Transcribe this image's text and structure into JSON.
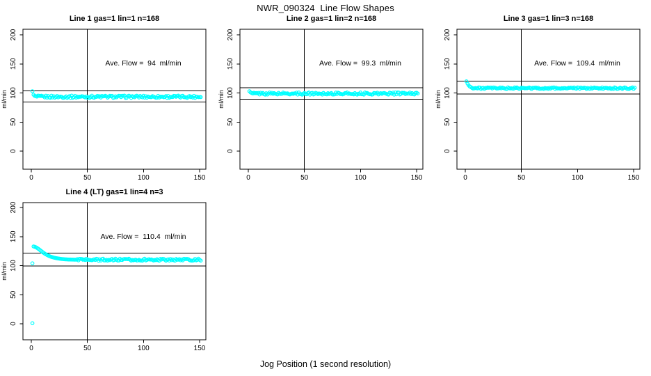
{
  "page": {
    "main_title": "NWR_090324  Line Flow Shapes",
    "shared_x_label": "Jog Position (1 second resolution)",
    "background_color": "#ffffff",
    "point_color": "#00ffff",
    "axis_color": "#000000"
  },
  "chart_data": [
    {
      "type": "scatter",
      "title": "Line 1 gas=1 lin=1 n=168",
      "annotation": "Ave. Flow =  94  ml/min",
      "ave_flow_ml_min": 94,
      "ylabel": "ml/min",
      "x_ticks": [
        "0",
        "50",
        "100",
        "150"
      ],
      "y_ticks": [
        "0",
        "50",
        "100",
        "150",
        "200"
      ],
      "xlim": [
        0,
        155
      ],
      "ylim": [
        0,
        200
      ],
      "ref_vline_x": 50,
      "ref_hlines_y": [
        103.4,
        84.6
      ],
      "transient_points": [
        [
          1,
          103
        ],
        [
          2,
          97
        ],
        [
          3,
          95
        ]
      ],
      "steady_band": {
        "x_start": 4,
        "x_end": 151,
        "value": 93.5,
        "noise": 2.0
      }
    },
    {
      "type": "scatter",
      "title": "Line 2 gas=1 lin=2 n=168",
      "annotation": "Ave. Flow =  99.3  ml/min",
      "ave_flow_ml_min": 99.3,
      "ylabel": "ml/min",
      "x_ticks": [
        "0",
        "50",
        "100",
        "150"
      ],
      "y_ticks": [
        "0",
        "50",
        "100",
        "150",
        "200"
      ],
      "xlim": [
        0,
        155
      ],
      "ylim": [
        0,
        200
      ],
      "ref_vline_x": 50,
      "ref_hlines_y": [
        109.2,
        89.4
      ],
      "transient_points": [
        [
          1,
          103
        ],
        [
          2,
          101
        ]
      ],
      "steady_band": {
        "x_start": 3,
        "x_end": 151,
        "value": 99,
        "noise": 1.9
      }
    },
    {
      "type": "scatter",
      "title": "Line 3 gas=1 lin=3 n=168",
      "annotation": "Ave. Flow =  109.4  ml/min",
      "ave_flow_ml_min": 109.4,
      "ylabel": "ml/min",
      "x_ticks": [
        "0",
        "50",
        "100",
        "150"
      ],
      "y_ticks": [
        "0",
        "50",
        "100",
        "150",
        "200"
      ],
      "xlim": [
        0,
        155
      ],
      "ylim": [
        0,
        200
      ],
      "ref_vline_x": 50,
      "ref_hlines_y": [
        120.3,
        98.5
      ],
      "transient_points": [
        [
          1,
          120
        ],
        [
          2,
          116
        ],
        [
          3,
          113
        ],
        [
          4,
          111
        ],
        [
          5,
          110
        ]
      ],
      "steady_band": {
        "x_start": 6,
        "x_end": 151,
        "value": 108.2,
        "noise": 1.4
      }
    },
    {
      "type": "scatter",
      "title": "Line 4 (LT) gas=1 lin=4 n=3",
      "annotation": "Ave. Flow =  110.4  ml/min",
      "ave_flow_ml_min": 110.4,
      "ylabel": "ml/min",
      "x_ticks": [
        "0",
        "50",
        "100",
        "150"
      ],
      "y_ticks": [
        "0",
        "50",
        "100",
        "150",
        "200"
      ],
      "xlim": [
        0,
        155
      ],
      "ylim": [
        0,
        200
      ],
      "ref_vline_x": 50,
      "ref_hlines_y": [
        121.4,
        99.4
      ],
      "transient_points": [
        [
          1,
          1
        ],
        [
          1,
          104
        ],
        [
          2,
          133
        ],
        [
          3,
          132.4
        ],
        [
          4,
          131.6
        ],
        [
          5,
          130.6
        ],
        [
          6,
          129.3
        ],
        [
          7,
          127.9
        ],
        [
          8,
          126.4
        ],
        [
          9,
          124.9
        ],
        [
          10,
          123.4
        ],
        [
          11,
          122.0
        ],
        [
          12,
          120.7
        ],
        [
          13,
          119.5
        ],
        [
          14,
          118.4
        ],
        [
          15,
          117.4
        ],
        [
          16,
          116.5
        ],
        [
          17,
          115.7
        ],
        [
          18,
          115.0
        ],
        [
          19,
          114.4
        ],
        [
          20,
          113.9
        ],
        [
          21,
          113.4
        ],
        [
          22,
          113.0
        ],
        [
          23,
          112.6
        ],
        [
          24,
          112.3
        ],
        [
          25,
          112.0
        ],
        [
          26,
          111.7
        ],
        [
          27,
          111.5
        ],
        [
          28,
          111.3
        ],
        [
          29,
          111.1
        ],
        [
          30,
          110.9
        ],
        [
          31,
          110.8
        ],
        [
          32,
          110.7
        ],
        [
          33,
          110.6
        ],
        [
          34,
          110.5
        ],
        [
          35,
          110.5
        ],
        [
          36,
          110.4
        ],
        [
          37,
          110.4
        ],
        [
          38,
          110.3
        ],
        [
          39,
          110.3
        ],
        [
          40,
          110.3
        ]
      ],
      "steady_band": {
        "x_start": 41,
        "x_end": 151,
        "value": 110.2,
        "noise": 1.7
      }
    }
  ]
}
